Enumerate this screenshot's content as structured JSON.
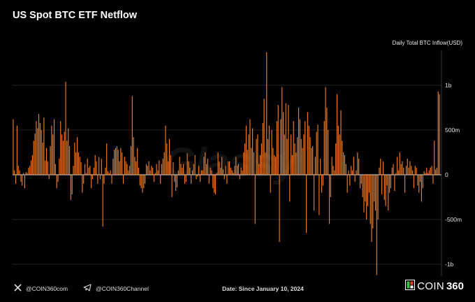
{
  "header": {
    "title": "US Spot BTC ETF Netflow",
    "unit_label": "Daily Total BTC Inflow(USD)"
  },
  "watermark": "Glassy",
  "footer": {
    "twitter_handle": "@COIN360com",
    "telegram_handle": "@COIN360Channel",
    "date_note": "Date: Since January 10, 2024",
    "brand_part1": "COIN",
    "brand_part2": "360"
  },
  "colors": {
    "bar": "#f07d23",
    "grid": "#2e2e2e",
    "background": "#000000",
    "tick": "#e0e0e0"
  },
  "chart_data": {
    "type": "bar",
    "title": "US Spot BTC ETF Netflow",
    "ylabel": "Daily Total BTC Inflow(USD)",
    "xlabel": "",
    "x_start": "January 10, 2024",
    "ylim": [
      -1.12,
      1.37
    ],
    "yticks": [
      -1,
      -0.5,
      0,
      0.5,
      1
    ],
    "ytick_labels": [
      "-1b",
      "-500m",
      "0",
      "500m",
      "1b"
    ],
    "grid": "horizontal",
    "unit": "USD billions",
    "values": [
      0.62,
      0.05,
      -0.1,
      0.55,
      0.1,
      0.05,
      -0.08,
      -0.12,
      0.02,
      -0.15,
      0.03,
      0.02,
      0.08,
      0.1,
      0.16,
      0.22,
      0.38,
      0.46,
      0.6,
      0.52,
      0.68,
      0.58,
      0.5,
      0.36,
      0.64,
      0.16,
      0.3,
      0.15,
      -0.05,
      0.32,
      0.55,
      0.45,
      0.62,
      0.12,
      -0.15,
      -0.08,
      0.18,
      0.6,
      0.45,
      0.38,
      0.48,
      1.04,
      0.38,
      0.52,
      0.32,
      -0.28,
      -0.22,
      0.1,
      0.36,
      0.25,
      0.42,
      0.25,
      0.2,
      0.14,
      -0.2,
      -0.1,
      0.12,
      0.02,
      0.18,
      0.08,
      0.1,
      -0.15,
      -0.05,
      0.08,
      0.22,
      0.15,
      -0.1,
      0.2,
      -0.05,
      0.18,
      -0.58,
      -0.1,
      0.08,
      0.35,
      0.04,
      0.02,
      0.05,
      -0.1,
      0.18,
      0.28,
      0.3,
      0.32,
      0.28,
      0.15,
      0.3,
      0.25,
      -0.1,
      0.2,
      0.15,
      0.12,
      0.05,
      0.1,
      0.32,
      0.88,
      0.42,
      0.2,
      0.15,
      0.3,
      0.08,
      -0.12,
      -0.15,
      -0.2,
      -0.15,
      -0.1,
      0.12,
      0.1,
      0.15,
      0.05,
      0.1,
      0.08,
      -0.08,
      0.02,
      0.12,
      0.05,
      0.16,
      -0.1,
      0.12,
      0.18,
      0.25,
      0.55,
      0.35,
      0.15,
      0.4,
      0.22,
      -0.25,
      0.14,
      -0.08,
      -0.18,
      -0.14,
      0.05,
      0.2,
      0.12,
      0.08,
      0.12,
      -0.1,
      -0.08,
      0.24,
      0.15,
      0.08,
      -0.1,
      0.05,
      0.12,
      0.22,
      -0.05,
      -0.02,
      0.1,
      -0.08,
      0.05,
      0.05,
      0.2,
      0.25,
      0.12,
      0.18,
      -0.1,
      0.08,
      0.05,
      -0.15,
      -0.2,
      -0.22,
      0.02,
      0.25,
      0.15,
      0.08,
      0.2,
      0.06,
      -0.05,
      0.1,
      -0.1,
      0.15,
      0.15,
      0.08,
      0.05,
      0.02,
      0.1,
      0.2,
      0.1,
      0.12,
      -0.05,
      0.08,
      0.05,
      0.25,
      0.35,
      0.55,
      0.28,
      0.45,
      0.62,
      0.3,
      0.52,
      0.25,
      -0.55,
      0.4,
      0.45,
      0.12,
      0.22,
      0.35,
      0.58,
      0.85,
      0.25,
      1.37,
      0.4,
      0.55,
      -0.2,
      0.5,
      0.3,
      0.22,
      0.2,
      0.6,
      0.78,
      -0.75,
      0.62,
      0.98,
      0.7,
      0.45,
      0.8,
      0.4,
      0.78,
      -0.3,
      0.45,
      0.22,
      0.6,
      0.35,
      0.25,
      0.42,
      0.75,
      0.62,
      0.4,
      0.3,
      0.45,
      0.6,
      -0.65,
      0.7,
      0.55,
      0.42,
      0.3,
      0.32,
      -0.4,
      0.2,
      0.48,
      0.56,
      -0.45,
      0.18,
      -0.2,
      -0.12,
      0.6,
      0.98,
      0.75,
      0.5,
      -0.55,
      -0.25,
      0.2,
      0.1,
      0.05,
      0.35,
      0.9,
      0.55,
      0.45,
      0.72,
      0.38,
      0.25,
      0.22,
      0.12,
      -0.2,
      0.05,
      -0.12,
      0.1,
      0.05,
      0.2,
      -0.08,
      0.05,
      0.25,
      0.18,
      -0.15,
      -0.1,
      -0.25,
      -0.42,
      -0.3,
      -0.5,
      -0.35,
      -0.2,
      -0.55,
      -0.75,
      -0.6,
      -0.3,
      -0.4,
      -1.12,
      -0.5,
      0.08,
      0.18,
      -0.22,
      0.15,
      -0.28,
      -0.35,
      -0.12,
      -0.4,
      -0.2,
      -0.15,
      0.08,
      0.12,
      -0.18,
      0.02,
      0.2,
      0.05,
      0.25,
      0.12,
      0.15,
      0.08,
      -0.2,
      0.1,
      0.18,
      0.08,
      0.15,
      0.1,
      0.05,
      -0.15,
      0.1,
      0.08,
      -0.12,
      -0.2,
      -0.08,
      -0.3,
      -0.15,
      0.04,
      0.02,
      0.08,
      0.02,
      0.05,
      0.08,
      0.1,
      -0.1,
      0.38,
      0.06,
      0.08,
      0.93,
      0.9
    ]
  }
}
